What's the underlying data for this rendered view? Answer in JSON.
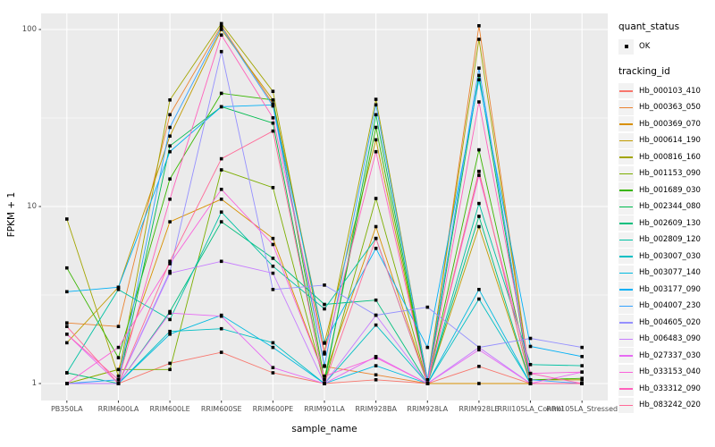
{
  "chart_data": {
    "type": "line",
    "title": "",
    "xlabel": "sample_name",
    "ylabel": "FPKM + 1",
    "y_scale": "log10",
    "y_ticks": [
      1,
      10,
      100
    ],
    "y_minor_gridlines": [
      3.162,
      31.62
    ],
    "ylim": [
      0.82,
      125
    ],
    "grid": true,
    "panel_color": "#ebebeb",
    "gridline_color": "#ffffff",
    "point_marker": "black-square",
    "legend_position": "right",
    "x": [
      "PB350LA",
      "RRIM600LA",
      "RRIM600LE",
      "RRIM600SE",
      "RRIM600PE",
      "RRIM901LA",
      "RRIM928BA",
      "RRIM928LA",
      "RRIM928LE",
      "RRII105LA_Control",
      "RRII105LA_Stressed"
    ],
    "series": [
      {
        "name": "Hb_000103_410",
        "color": "#F8766D",
        "values": [
          1.0,
          1.0,
          1.3,
          1.5,
          1.15,
          1.0,
          1.05,
          1.0,
          1.25,
          1.0,
          1.0
        ]
      },
      {
        "name": "Hb_000363_050",
        "color": "#EA8331",
        "values": [
          2.2,
          2.1,
          33,
          105,
          38,
          1.25,
          1.12,
          1.0,
          105,
          1.05,
          1.05
        ]
      },
      {
        "name": "Hb_000369_070",
        "color": "#D89000",
        "values": [
          1.0,
          1.2,
          8.2,
          11,
          6.6,
          1.1,
          7.7,
          1.0,
          1.0,
          1.0,
          1.0
        ]
      },
      {
        "name": "Hb_000614_190",
        "color": "#C09B00",
        "values": [
          1.7,
          3.5,
          25,
          100,
          40,
          1.7,
          23.8,
          1.0,
          7.7,
          1.0,
          1.0
        ]
      },
      {
        "name": "Hb_000816_160",
        "color": "#A3A500",
        "values": [
          8.5,
          1.1,
          40,
          108,
          44.7,
          1.5,
          40.3,
          1.05,
          88,
          1.05,
          1.05
        ]
      },
      {
        "name": "Hb_001153_090",
        "color": "#7CAE00",
        "values": [
          1.0,
          1.2,
          1.2,
          16.1,
          12.8,
          1.0,
          11.1,
          1.0,
          15.8,
          1.0,
          1.0
        ]
      },
      {
        "name": "Hb_001689_030",
        "color": "#39B600",
        "values": [
          4.5,
          1.4,
          14.3,
          43.6,
          40,
          1.05,
          28,
          1.0,
          20.9,
          1.05,
          1.07
        ]
      },
      {
        "name": "Hb_002344_080",
        "color": "#00BB4E",
        "values": [
          1.0,
          1.0,
          22,
          36.6,
          29.6,
          1.0,
          33,
          1.0,
          55,
          1.0,
          1.0
        ]
      },
      {
        "name": "Hb_002609_130",
        "color": "#00BF7D",
        "values": [
          1.15,
          1.0,
          2.55,
          8.2,
          5.1,
          2.8,
          2.96,
          1.0,
          8.8,
          1.0,
          1.0
        ]
      },
      {
        "name": "Hb_002809_120",
        "color": "#00C1A3",
        "values": [
          1.15,
          3.4,
          2.3,
          9.3,
          4.6,
          2.64,
          6.6,
          1.0,
          10.4,
          1.28,
          1.26
        ]
      },
      {
        "name": "Hb_003007_030",
        "color": "#00BFC4",
        "values": [
          1.0,
          1.0,
          1.97,
          2.04,
          1.7,
          1.0,
          2.14,
          1.0,
          3.0,
          1.0,
          1.0
        ]
      },
      {
        "name": "Hb_003077_140",
        "color": "#00BAE0",
        "values": [
          1.0,
          1.0,
          1.9,
          2.43,
          1.6,
          1.0,
          1.26,
          1.0,
          3.4,
          1.0,
          1.0
        ]
      },
      {
        "name": "Hb_003177_090",
        "color": "#00B0F6",
        "values": [
          3.3,
          3.5,
          20.4,
          36.6,
          37.5,
          1.69,
          5.8,
          1.6,
          52,
          1.62,
          1.42
        ]
      },
      {
        "name": "Hb_004007_230",
        "color": "#35A2FF",
        "values": [
          1.0,
          1.05,
          28,
          103,
          37,
          1.26,
          37.5,
          1.05,
          60.5,
          1.05,
          1.0
        ]
      },
      {
        "name": "Hb_004605_020",
        "color": "#9590FF",
        "values": [
          1.0,
          1.0,
          4.3,
          75,
          3.4,
          3.6,
          2.43,
          2.7,
          1.6,
          1.8,
          1.6
        ]
      },
      {
        "name": "Hb_006483_090",
        "color": "#C77CFF",
        "values": [
          1.0,
          1.0,
          4.2,
          4.9,
          4.2,
          1.0,
          2.43,
          1.0,
          1.6,
          1.0,
          1.0
        ]
      },
      {
        "name": "Hb_027337_030",
        "color": "#E76BF3",
        "values": [
          1.9,
          1.0,
          2.5,
          2.4,
          1.23,
          1.0,
          1.42,
          1.0,
          1.55,
          1.0,
          1.16
        ]
      },
      {
        "name": "Hb_033153_040",
        "color": "#FA62DB",
        "values": [
          1.0,
          1.6,
          4.75,
          12.5,
          6.1,
          1.1,
          1.4,
          1.0,
          15,
          1.14,
          1.16
        ]
      },
      {
        "name": "Hb_033312_090",
        "color": "#FF62BC",
        "values": [
          1.9,
          1.05,
          11,
          93,
          31.7,
          1.47,
          20.4,
          1.0,
          39,
          1.14,
          1.0
        ]
      },
      {
        "name": "Hb_083242_020",
        "color": "#FF6A98",
        "values": [
          2.1,
          1.0,
          4.9,
          18.6,
          26.7,
          1.0,
          6.6,
          1.0,
          15.8,
          1.0,
          1.0
        ]
      }
    ],
    "legend": {
      "quant_title": "quant_status",
      "quant_items": [
        "OK"
      ],
      "tracking_title": "tracking_id"
    }
  }
}
